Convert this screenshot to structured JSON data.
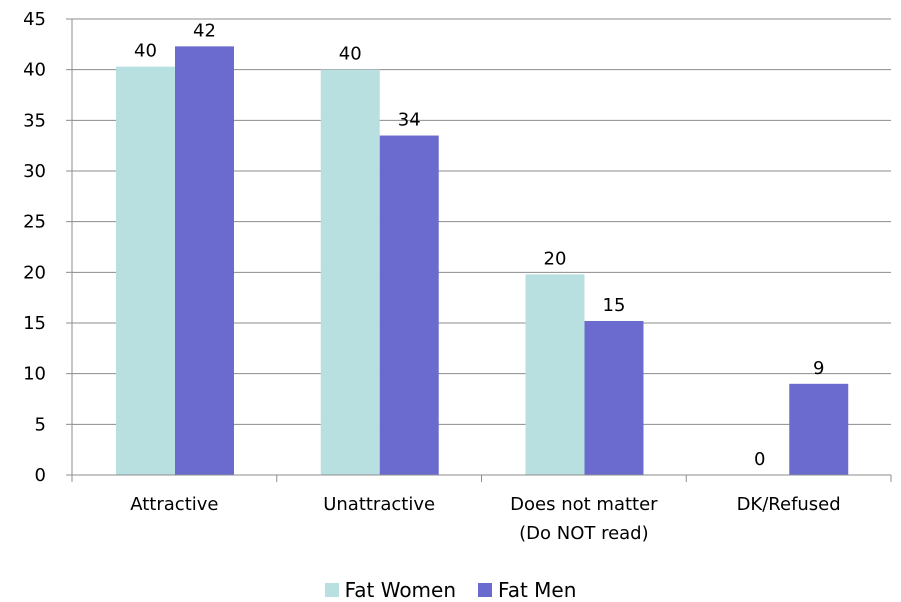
{
  "chart_data": {
    "type": "bar",
    "categories": [
      "Attractive",
      "Unattractive",
      "Does not matter\n(Do NOT read)",
      "DK/Refused"
    ],
    "series": [
      {
        "name": "Fat Women",
        "values": [
          40,
          40,
          20,
          0
        ],
        "color": "#B8E0E0"
      },
      {
        "name": "Fat Men",
        "values": [
          42,
          34,
          15,
          9
        ],
        "color": "#6B6BCF"
      }
    ],
    "plotted_values": [
      [
        40.3,
        40,
        19.8,
        0
      ],
      [
        42.3,
        33.5,
        15.2,
        9
      ]
    ],
    "ylim": [
      0,
      45
    ],
    "yticks": [
      0,
      5,
      10,
      15,
      20,
      25,
      30,
      35,
      40,
      45
    ],
    "grid": true,
    "legend_position": "bottom",
    "title": "",
    "xlabel": "",
    "ylabel": ""
  }
}
